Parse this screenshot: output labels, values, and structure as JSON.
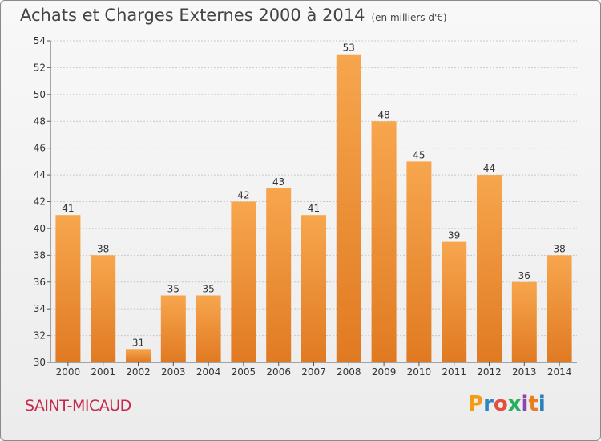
{
  "header": {
    "title": "Achats et Charges Externes 2000 à 2014",
    "subtitle": "(en milliers d'€)"
  },
  "footer": {
    "commune": "SAINT-MICAUD",
    "logo_letters": [
      "P",
      "r",
      "o",
      "x",
      "i",
      "t",
      "i"
    ],
    "logo_colors": [
      "#f39c12",
      "#2e86c1",
      "#e74c3c",
      "#27ae60",
      "#8e44ad",
      "#e67e22",
      "#2980b9"
    ]
  },
  "colors": {
    "bar_light": "#f7a64e",
    "bar_dark": "#e07a22",
    "grid": "#c8c8c8",
    "commune": "#c8284c"
  },
  "chart_data": {
    "type": "bar",
    "title": "Achats et Charges Externes 2000 à 2014",
    "subtitle": "(en milliers d'€)",
    "xlabel": "",
    "ylabel": "",
    "categories": [
      "2000",
      "2001",
      "2002",
      "2003",
      "2004",
      "2005",
      "2006",
      "2007",
      "2008",
      "2009",
      "2010",
      "2011",
      "2012",
      "2013",
      "2014"
    ],
    "values": [
      41,
      38,
      31,
      35,
      35,
      42,
      43,
      41,
      53,
      48,
      45,
      39,
      44,
      36,
      38
    ],
    "ylim": [
      30,
      54
    ],
    "yticks": [
      30,
      32,
      34,
      36,
      38,
      40,
      42,
      44,
      46,
      48,
      50,
      52,
      54
    ],
    "grid": true,
    "legend": "none"
  }
}
